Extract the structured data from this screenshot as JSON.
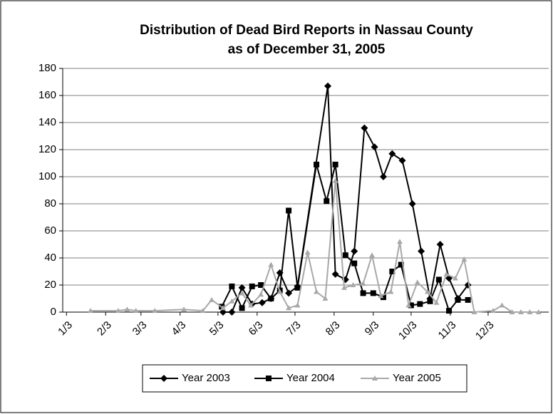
{
  "chart_data": {
    "type": "line",
    "title": [
      "Distribution of Dead Bird Reports in Nassau County",
      "as of December 31, 2005"
    ],
    "xlim": [
      0,
      385
    ],
    "xticks": [
      {
        "value": 3,
        "label": "1/3"
      },
      {
        "value": 34,
        "label": "2/3"
      },
      {
        "value": 62,
        "label": "3/3"
      },
      {
        "value": 93,
        "label": "4/3"
      },
      {
        "value": 123,
        "label": "5/3"
      },
      {
        "value": 154,
        "label": "6/3"
      },
      {
        "value": 184,
        "label": "7/3"
      },
      {
        "value": 215,
        "label": "8/3"
      },
      {
        "value": 246,
        "label": "9/3"
      },
      {
        "value": 276,
        "label": "10/3"
      },
      {
        "value": 307,
        "label": "11/3"
      },
      {
        "value": 337,
        "label": "12/3"
      }
    ],
    "ylim": [
      0,
      180
    ],
    "yticks": [
      0,
      20,
      40,
      60,
      80,
      100,
      120,
      140,
      160,
      180
    ],
    "grid": true,
    "legend": "bottom",
    "series": [
      {
        "name": "Year 2003",
        "color": "#000000",
        "marker": "diamond",
        "x": [
          127,
          134,
          142,
          150,
          158,
          165,
          172,
          179,
          186,
          210,
          216,
          224,
          231,
          239,
          247,
          254,
          261,
          269,
          277,
          284,
          291,
          299,
          306,
          313,
          321
        ],
        "values": [
          0,
          0,
          18,
          6,
          7,
          10,
          29,
          14,
          19,
          167,
          28,
          24,
          45,
          136,
          122,
          100,
          117,
          112,
          80,
          45,
          10,
          50,
          25,
          10,
          20
        ]
      },
      {
        "name": "Year 2004",
        "color": "#000000",
        "marker": "square",
        "x": [
          126,
          134,
          142,
          150,
          157,
          165,
          172,
          179,
          186,
          201,
          209,
          216,
          224,
          231,
          238,
          246,
          254,
          261,
          268,
          276,
          283,
          291,
          298,
          306,
          313,
          321
        ],
        "values": [
          4,
          19,
          3,
          19,
          20,
          10,
          16,
          75,
          18,
          109,
          82,
          109,
          42,
          36,
          14,
          14,
          11,
          30,
          35,
          5,
          6,
          8,
          24,
          1,
          9,
          9
        ]
      },
      {
        "name": "Year 2005",
        "color": "#a8a8a8",
        "marker": "triangle",
        "x": [
          22,
          44,
          51,
          58,
          73,
          96,
          111,
          118,
          127,
          134,
          142,
          149,
          157,
          165,
          172,
          179,
          186,
          194,
          201,
          208,
          216,
          223,
          230,
          238,
          245,
          252,
          260,
          267,
          274,
          281,
          289,
          296,
          304,
          311,
          318,
          326,
          341,
          348,
          356,
          363,
          370,
          377
        ],
        "values": [
          1,
          1,
          2,
          1,
          1,
          2,
          1,
          9,
          3,
          8,
          14,
          5,
          13,
          35,
          15,
          3,
          5,
          44,
          15,
          10,
          97,
          18,
          20,
          21,
          42,
          12,
          15,
          52,
          5,
          22,
          15,
          7,
          28,
          25,
          39,
          0,
          1,
          5,
          0,
          0,
          0,
          0
        ]
      }
    ]
  }
}
